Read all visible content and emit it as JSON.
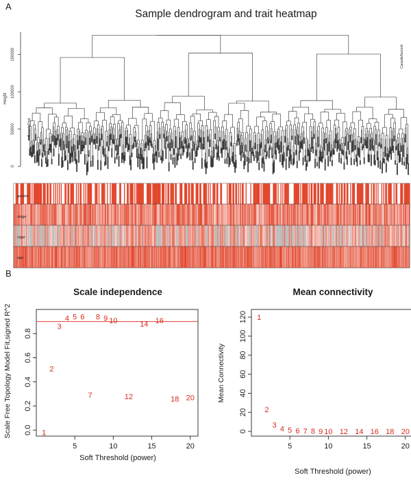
{
  "panel_labels": {
    "a": "A",
    "b": "B"
  },
  "colors": {
    "heat": "#e2452b",
    "threshold": "#e0403a",
    "points": "#d62a1f",
    "ink": "#1a1a1a"
  },
  "chart_data": [
    {
      "type": "dendrogram",
      "panel": "A",
      "title": "Sample dendrogram and trait heatmap",
      "ylabel": "Height",
      "yticks": [
        0,
        50000,
        100000,
        150000
      ],
      "ylim": [
        0,
        180000
      ],
      "leaf_labels_visible": [
        "CanadaFirst",
        "CanadaSecond"
      ],
      "traits": [
        {
          "name": "gender",
          "levels": "binary"
        },
        {
          "name": "stage",
          "levels": "graded"
        },
        {
          "name": "cigar",
          "levels": "graded"
        },
        {
          "name": "age",
          "levels": "graded"
        }
      ]
    },
    {
      "type": "scatter",
      "panel": "B",
      "title": "Scale independence",
      "xlabel": "Soft Threshold (power)",
      "ylabel": "Scale Free Topology Model Fit,signed R^2",
      "xlim": [
        0,
        21
      ],
      "ylim": [
        -0.05,
        1.0
      ],
      "xticks": [
        5,
        10,
        15,
        20
      ],
      "yticks": [
        0.0,
        0.2,
        0.4,
        0.6,
        0.8
      ],
      "hline": 0.9,
      "points": [
        {
          "x": 1,
          "y": -0.02
        },
        {
          "x": 2,
          "y": 0.51
        },
        {
          "x": 3,
          "y": 0.86
        },
        {
          "x": 4,
          "y": 0.93
        },
        {
          "x": 5,
          "y": 0.94
        },
        {
          "x": 6,
          "y": 0.94
        },
        {
          "x": 7,
          "y": 0.29
        },
        {
          "x": 8,
          "y": 0.94
        },
        {
          "x": 9,
          "y": 0.93
        },
        {
          "x": 10,
          "y": 0.91
        },
        {
          "x": 12,
          "y": 0.28
        },
        {
          "x": 14,
          "y": 0.88
        },
        {
          "x": 16,
          "y": 0.91
        },
        {
          "x": 18,
          "y": 0.26
        },
        {
          "x": 20,
          "y": 0.27
        }
      ]
    },
    {
      "type": "scatter",
      "panel": "B",
      "title": "Mean connectivity",
      "xlabel": "Soft Threshold (power)",
      "ylabel": "Mean Connectivity",
      "xlim": [
        0,
        21
      ],
      "ylim": [
        -5,
        128
      ],
      "xticks": [
        5,
        10,
        15,
        20
      ],
      "yticks": [
        0,
        20,
        40,
        60,
        80,
        100,
        120
      ],
      "points": [
        {
          "x": 1,
          "y": 120
        },
        {
          "x": 2,
          "y": 23
        },
        {
          "x": 3,
          "y": 7
        },
        {
          "x": 4,
          "y": 3
        },
        {
          "x": 5,
          "y": 1.5
        },
        {
          "x": 6,
          "y": 0.8
        },
        {
          "x": 7,
          "y": 0.5
        },
        {
          "x": 8,
          "y": 0.3
        },
        {
          "x": 9,
          "y": 0.2
        },
        {
          "x": 10,
          "y": 0.1
        },
        {
          "x": 12,
          "y": 0.05
        },
        {
          "x": 14,
          "y": 0
        },
        {
          "x": 16,
          "y": 0
        },
        {
          "x": 18,
          "y": 0
        },
        {
          "x": 20,
          "y": 0
        }
      ]
    }
  ]
}
